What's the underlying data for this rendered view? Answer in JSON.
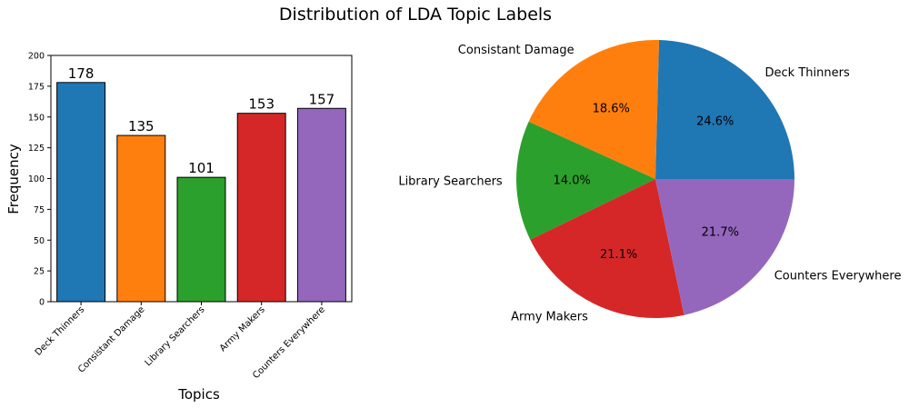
{
  "figure_title": "Distribution of LDA Topic Labels",
  "colors": [
    "#1f77b4",
    "#ff7f0e",
    "#2ca02c",
    "#d62728",
    "#9467bd"
  ],
  "chart_data": [
    {
      "type": "bar",
      "categories": [
        "Deck Thinners",
        "Consistant Damage",
        "Library Searchers",
        "Army Makers",
        "Counters Everywhere"
      ],
      "values": [
        178,
        135,
        101,
        153,
        157
      ],
      "data_labels": [
        "178",
        "135",
        "101",
        "153",
        "157"
      ],
      "xlabel": "Topics",
      "ylabel": "Frequency",
      "ylim": [
        0,
        200
      ],
      "yticks": [
        0,
        25,
        50,
        75,
        100,
        125,
        150,
        175,
        200
      ],
      "grid": false,
      "legend": "none"
    },
    {
      "type": "pie",
      "labels": [
        "Deck Thinners",
        "Consistant Damage",
        "Library Searchers",
        "Army Makers",
        "Counters Everywhere"
      ],
      "values": [
        178,
        135,
        101,
        153,
        157
      ],
      "percent_labels": [
        "24.6%",
        "18.6%",
        "14.0%",
        "21.1%",
        "21.7%"
      ],
      "start_angle_deg": 0,
      "direction": "counterclockwise",
      "legend": "none"
    }
  ]
}
